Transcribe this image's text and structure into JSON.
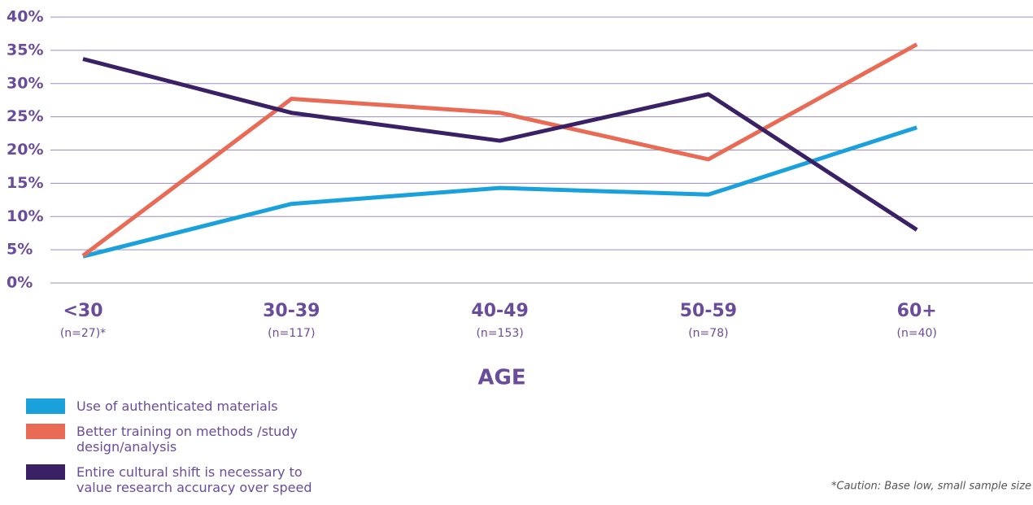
{
  "chart_data": {
    "type": "line",
    "categories": [
      "<30",
      "30-39",
      "40-49",
      "50-59",
      "60+"
    ],
    "category_notes": [
      "(n=27)*",
      "(n=117)",
      "(n=153)",
      "(n=78)",
      "(n=40)"
    ],
    "xlabel": "AGE",
    "series": [
      {
        "name": "Use of  authenticated materials",
        "color": "#1aa1dc",
        "values": [
          4.0,
          11.9,
          14.3,
          13.3,
          23.4
        ]
      },
      {
        "name": "Better training on methods /study design/analysis",
        "color": "#e96a55",
        "values": [
          4.1,
          27.7,
          25.6,
          18.6,
          35.9
        ]
      },
      {
        "name": "Entire cultural shift is necessary to value research accuracy over speed",
        "color": "#3a2064",
        "values": [
          33.7,
          25.6,
          21.4,
          28.4,
          8.0
        ]
      }
    ],
    "ylim": [
      0,
      40
    ],
    "yticks": [
      {
        "value": 0,
        "label": "0%"
      },
      {
        "value": 5,
        "label": "5%"
      },
      {
        "value": 10,
        "label": "10%"
      },
      {
        "value": 15,
        "label": "15%"
      },
      {
        "value": 20,
        "label": "20%"
      },
      {
        "value": 25,
        "label": "25%"
      },
      {
        "value": 30,
        "label": "30%"
      },
      {
        "value": 35,
        "label": "35%"
      },
      {
        "value": 40,
        "label": "40%"
      }
    ],
    "grid": true,
    "footnote": "*Caution: Base low, small sample size"
  }
}
